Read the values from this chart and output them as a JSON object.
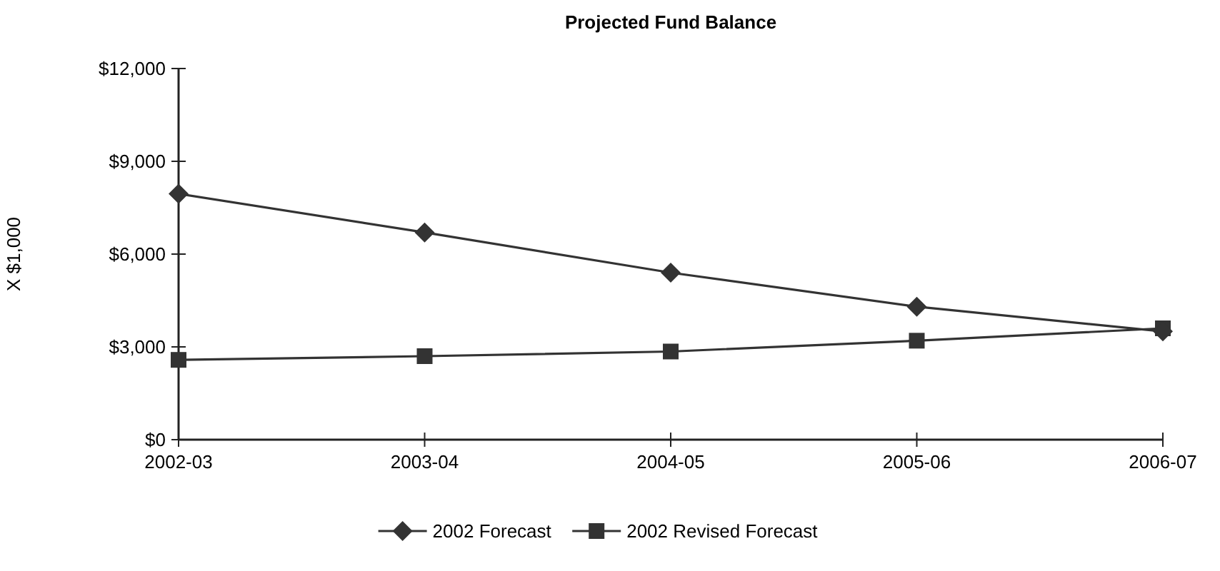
{
  "chart_data": {
    "type": "line",
    "title": "Projected Fund Balance",
    "ylabel": "X $1,000",
    "categories": [
      "2002-03",
      "2003-04",
      "2004-05",
      "2005-06",
      "2006-07"
    ],
    "series": [
      {
        "name": "2002 Forecast",
        "color": "#333333",
        "marker": "diamond",
        "values": [
          7950,
          6700,
          5400,
          4300,
          3500
        ]
      },
      {
        "name": "2002 Revised Forecast",
        "color": "#333333",
        "marker": "square",
        "values": [
          2580,
          2700,
          2850,
          3200,
          3600
        ]
      }
    ],
    "ylim": [
      0,
      12000
    ],
    "yticks": [
      {
        "value": 0,
        "label": "$0"
      },
      {
        "value": 3000,
        "label": "$3,000"
      },
      {
        "value": 6000,
        "label": "$6,000"
      },
      {
        "value": 9000,
        "label": "$9,000"
      },
      {
        "value": 12000,
        "label": "$12,000"
      }
    ],
    "grid": false,
    "legend": "bottom",
    "line_style": "solid"
  }
}
